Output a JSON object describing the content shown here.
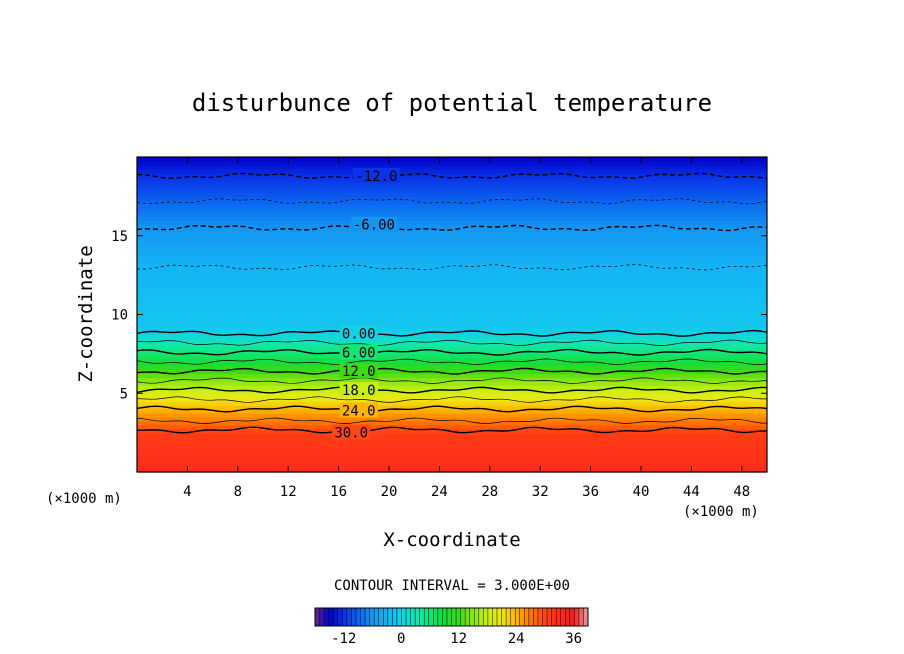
{
  "chart_data": {
    "type": "heatmap",
    "title": "disturbunce of potential temperature",
    "xlabel": "X-coordinate",
    "ylabel": "Z-coordinate",
    "x_unit_left": "(×1000 m)",
    "x_unit_right": "(×1000 m)",
    "xlim": [
      0,
      50
    ],
    "ylim": [
      0,
      20
    ],
    "x_ticks": [
      4,
      8,
      12,
      16,
      20,
      24,
      28,
      32,
      36,
      40,
      44,
      48
    ],
    "x_tick_labels": [
      "4",
      "8",
      "12",
      "16",
      "20",
      "24",
      "28",
      "32",
      "36",
      "40",
      "44",
      "48"
    ],
    "y_ticks": [
      5,
      10,
      15
    ],
    "y_tick_labels": [
      "5",
      "10",
      "15"
    ],
    "contour_interval_text": "CONTOUR INTERVAL = 3.000E+00",
    "contour_labels": [
      {
        "text": "-12.0",
        "x": 19.0,
        "z": 18.8,
        "value": -12
      },
      {
        "text": "-6.00",
        "x": 18.8,
        "z": 15.7,
        "value": -6
      },
      {
        "text": "0.00",
        "x": 17.6,
        "z": 8.8,
        "value": 0
      },
      {
        "text": "6.00",
        "x": 17.6,
        "z": 7.6,
        "value": 6
      },
      {
        "text": "12.0",
        "x": 17.6,
        "z": 6.4,
        "value": 12
      },
      {
        "text": "18.0",
        "x": 17.6,
        "z": 5.2,
        "value": 18
      },
      {
        "text": "24.0",
        "x": 17.6,
        "z": 3.9,
        "value": 24
      },
      {
        "text": "30.0",
        "x": 17.0,
        "z": 2.5,
        "value": 30
      }
    ],
    "temperature_profile": [
      {
        "z": 0.0,
        "value": 33
      },
      {
        "z": 2.5,
        "value": 31
      },
      {
        "z": 3.0,
        "value": 28
      },
      {
        "z": 4.0,
        "value": 24
      },
      {
        "z": 5.2,
        "value": 18
      },
      {
        "z": 6.4,
        "value": 12
      },
      {
        "z": 7.6,
        "value": 6
      },
      {
        "z": 8.8,
        "value": 0
      },
      {
        "z": 9.4,
        "value": -1.5
      },
      {
        "z": 11.0,
        "value": -2
      },
      {
        "z": 13.0,
        "value": -3
      },
      {
        "z": 15.5,
        "value": -6
      },
      {
        "z": 17.2,
        "value": -9
      },
      {
        "z": 18.8,
        "value": -12
      },
      {
        "z": 20.0,
        "value": -15
      }
    ],
    "colorbar": {
      "min": -18,
      "max": 39,
      "ticks": [
        -12,
        0,
        12,
        24,
        36
      ],
      "tick_labels": [
        "-12",
        "0",
        "12",
        "24",
        "36"
      ]
    },
    "colormap_stops": [
      {
        "v": -18,
        "color": "#6a2a8a"
      },
      {
        "v": -15,
        "color": "#0000c8"
      },
      {
        "v": -12,
        "color": "#0a32e6"
      },
      {
        "v": -9,
        "color": "#0a64f0"
      },
      {
        "v": -6,
        "color": "#1496f0"
      },
      {
        "v": -3,
        "color": "#14b4f5"
      },
      {
        "v": 0,
        "color": "#12d2e6"
      },
      {
        "v": 3,
        "color": "#12e6b4"
      },
      {
        "v": 6,
        "color": "#12e678"
      },
      {
        "v": 9,
        "color": "#14dc3c"
      },
      {
        "v": 12,
        "color": "#3cdc14"
      },
      {
        "v": 15,
        "color": "#8ce614"
      },
      {
        "v": 18,
        "color": "#c8f014"
      },
      {
        "v": 21,
        "color": "#f0e614"
      },
      {
        "v": 24,
        "color": "#ffb400"
      },
      {
        "v": 27,
        "color": "#ff7800"
      },
      {
        "v": 30,
        "color": "#ff4614"
      },
      {
        "v": 33,
        "color": "#ff2a1a"
      },
      {
        "v": 36,
        "color": "#f01e1e"
      },
      {
        "v": 39,
        "color": "#e8a0a0"
      }
    ]
  }
}
